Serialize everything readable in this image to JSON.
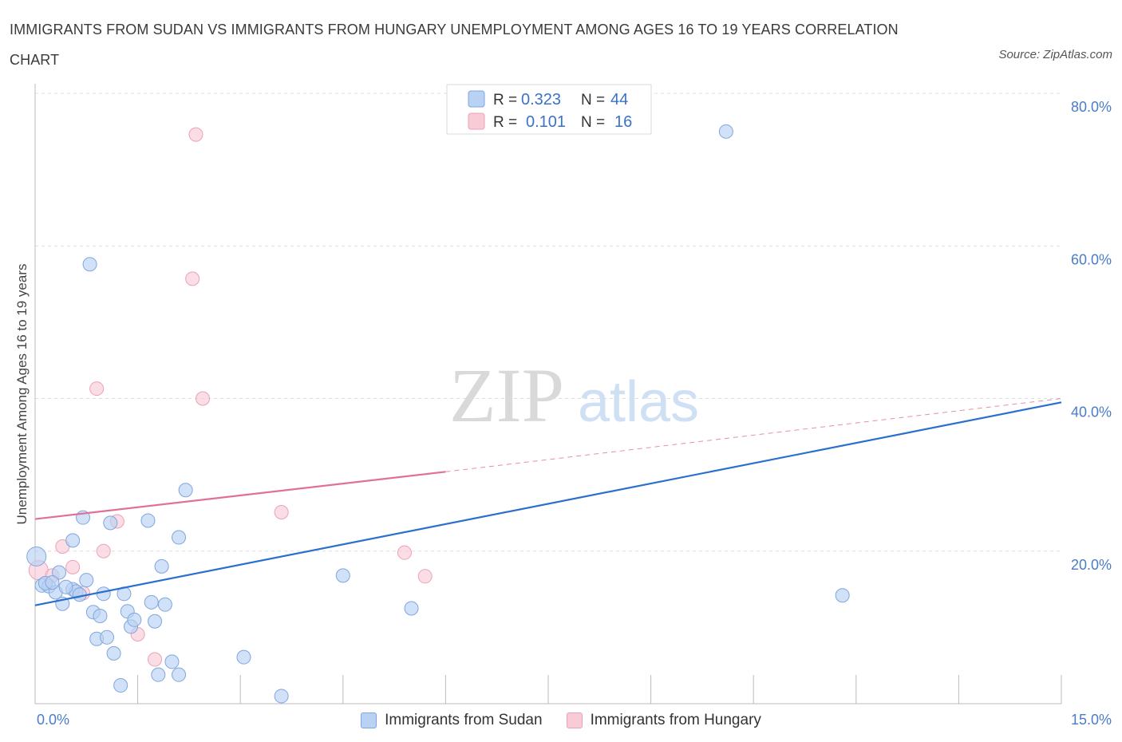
{
  "title": "IMMIGRANTS FROM SUDAN VS IMMIGRANTS FROM HUNGARY UNEMPLOYMENT AMONG AGES 16 TO 19 YEARS CORRELATION CHART",
  "source": "Source: ZipAtlas.com",
  "watermark": {
    "zip": "ZIP",
    "atlas": "atlas"
  },
  "colors": {
    "sudan_fill": "#b9d1f3",
    "sudan_stroke": "#7fa6de",
    "sudan_line": "#2b6fce",
    "hungary_fill": "#f9cbd7",
    "hungary_stroke": "#eba2b6",
    "hungary_line": "#e0709a",
    "axis_label": "#4a7cc9"
  },
  "legend": {
    "rows": [
      {
        "r_label": "R =",
        "r_value": "0.323",
        "n_label": "N =",
        "n_value": "44"
      },
      {
        "r_label": "R =",
        "r_value": "0.101",
        "n_label": "N =",
        "n_value": "16"
      }
    ]
  },
  "chart_data": {
    "type": "scatter",
    "xlabel": "",
    "ylabel": "Unemployment Among Ages 16 to 19 years",
    "xlim": [
      0,
      15
    ],
    "ylim": [
      0,
      80
    ],
    "x_tick_labels": [
      "0.0%",
      "15.0%"
    ],
    "y_ticks": [
      20,
      40,
      60,
      80
    ],
    "y_tick_labels": [
      "20.0%",
      "40.0%",
      "60.0%",
      "80.0%"
    ],
    "grid": true,
    "series": [
      {
        "name": "Immigrants from Sudan",
        "R": 0.323,
        "N": 44,
        "trend": {
          "x": [
            0,
            15
          ],
          "y": [
            12.9,
            39.5
          ]
        },
        "points": [
          [
            0.02,
            19.3
          ],
          [
            0.1,
            15.5
          ],
          [
            0.2,
            15.4
          ],
          [
            0.3,
            14.6
          ],
          [
            0.35,
            17.2
          ],
          [
            0.4,
            13.1
          ],
          [
            0.55,
            15.0
          ],
          [
            0.55,
            21.4
          ],
          [
            0.6,
            14.7
          ],
          [
            0.65,
            14.3
          ],
          [
            0.7,
            24.4
          ],
          [
            0.75,
            16.2
          ],
          [
            0.8,
            57.6
          ],
          [
            0.85,
            12.0
          ],
          [
            0.9,
            8.5
          ],
          [
            0.95,
            11.5
          ],
          [
            1.0,
            14.4
          ],
          [
            1.05,
            8.7
          ],
          [
            1.1,
            23.7
          ],
          [
            1.15,
            6.6
          ],
          [
            1.25,
            2.4
          ],
          [
            1.3,
            14.4
          ],
          [
            1.35,
            12.1
          ],
          [
            1.4,
            10.1
          ],
          [
            1.45,
            11.0
          ],
          [
            1.65,
            24.0
          ],
          [
            1.7,
            13.3
          ],
          [
            1.75,
            10.8
          ],
          [
            1.8,
            3.8
          ],
          [
            1.85,
            18.0
          ],
          [
            1.9,
            13.0
          ],
          [
            2.0,
            5.5
          ],
          [
            2.1,
            3.8
          ],
          [
            2.1,
            21.8
          ],
          [
            2.2,
            28.0
          ],
          [
            3.05,
            6.1
          ],
          [
            3.6,
            1.0
          ],
          [
            4.5,
            16.8
          ],
          [
            5.5,
            12.5
          ],
          [
            10.1,
            75.0
          ],
          [
            11.8,
            14.2
          ],
          [
            0.15,
            15.8
          ],
          [
            0.45,
            15.3
          ],
          [
            0.25,
            15.9
          ]
        ]
      },
      {
        "name": "Immigrants from Hungary",
        "R": 0.101,
        "N": 16,
        "trend": {
          "x": [
            0,
            6
          ],
          "y": [
            24.2,
            30.4
          ]
        },
        "trend_dashed": {
          "x": [
            6,
            15
          ],
          "y": [
            30.4,
            40.0
          ]
        },
        "points": [
          [
            0.05,
            17.5
          ],
          [
            0.25,
            16.8
          ],
          [
            0.4,
            20.6
          ],
          [
            0.55,
            17.9
          ],
          [
            0.7,
            14.5
          ],
          [
            0.9,
            41.3
          ],
          [
            1.0,
            20.0
          ],
          [
            1.2,
            23.9
          ],
          [
            1.5,
            9.1
          ],
          [
            1.75,
            5.8
          ],
          [
            2.3,
            55.7
          ],
          [
            2.35,
            74.6
          ],
          [
            2.45,
            40.0
          ],
          [
            3.6,
            25.1
          ],
          [
            5.4,
            19.8
          ],
          [
            5.7,
            16.7
          ]
        ]
      }
    ]
  }
}
